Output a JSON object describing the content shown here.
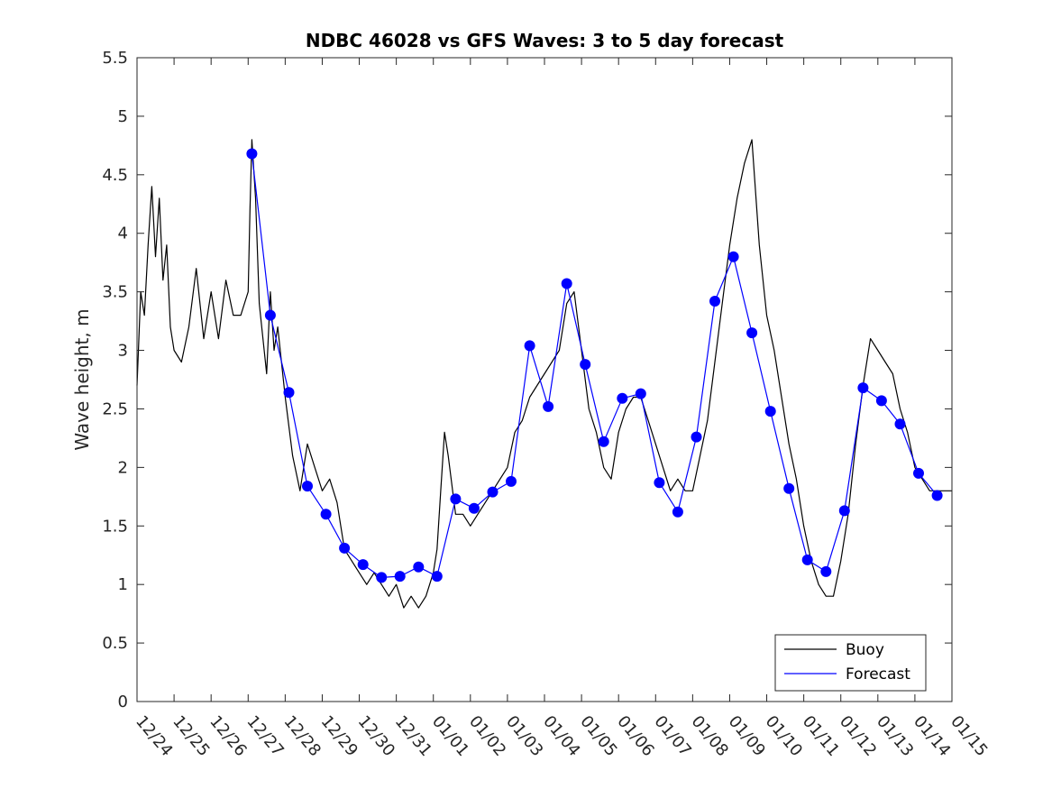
{
  "chart_data": {
    "type": "line",
    "title": "NDBC 46028 vs GFS Waves: 3 to 5 day forecast",
    "xlabel": "",
    "ylabel": "Wave height, m",
    "ylim": [
      0,
      5.5
    ],
    "xlim": [
      0,
      22
    ],
    "x_unit": "days since 12/24",
    "yticks": [
      0,
      0.5,
      1,
      1.5,
      2,
      2.5,
      3,
      3.5,
      4,
      4.5,
      5,
      5.5
    ],
    "ytick_labels": [
      "0",
      "0.5",
      "1",
      "1.5",
      "2",
      "2.5",
      "3",
      "3.5",
      "4",
      "4.5",
      "5",
      "5.5"
    ],
    "xtick_labels": [
      "12/24",
      "12/25",
      "12/26",
      "12/27",
      "12/28",
      "12/29",
      "12/30",
      "12/31",
      "01/01",
      "01/02",
      "01/03",
      "01/04",
      "01/05",
      "01/06",
      "01/07",
      "01/08",
      "01/09",
      "01/10",
      "01/11",
      "01/12",
      "01/13",
      "01/14",
      "01/15"
    ],
    "grid": false,
    "legend": {
      "position": "bottom-right",
      "entries": [
        {
          "label": "Buoy",
          "color": "#000000"
        },
        {
          "label": "Forecast",
          "color": "#0000ff"
        }
      ]
    },
    "series": [
      {
        "name": "Buoy",
        "color": "#000000",
        "x": [
          0.0,
          0.1,
          0.2,
          0.3,
          0.4,
          0.5,
          0.6,
          0.7,
          0.8,
          0.9,
          1.0,
          1.2,
          1.4,
          1.6,
          1.8,
          2.0,
          2.2,
          2.4,
          2.6,
          2.8,
          3.0,
          3.05,
          3.1,
          3.2,
          3.3,
          3.4,
          3.5,
          3.6,
          3.7,
          3.8,
          4.0,
          4.2,
          4.4,
          4.6,
          4.8,
          5.0,
          5.2,
          5.4,
          5.6,
          5.8,
          6.0,
          6.2,
          6.4,
          6.6,
          6.8,
          7.0,
          7.2,
          7.4,
          7.6,
          7.8,
          8.0,
          8.1,
          8.2,
          8.3,
          8.4,
          8.6,
          8.8,
          9.0,
          9.2,
          9.4,
          9.6,
          9.8,
          10.0,
          10.2,
          10.4,
          10.6,
          10.8,
          11.0,
          11.2,
          11.4,
          11.6,
          11.8,
          12.0,
          12.2,
          12.4,
          12.6,
          12.8,
          13.0,
          13.2,
          13.4,
          13.6,
          13.8,
          14.0,
          14.2,
          14.4,
          14.6,
          14.8,
          15.0,
          15.2,
          15.4,
          15.6,
          15.8,
          16.0,
          16.2,
          16.4,
          16.6,
          16.8,
          17.0,
          17.2,
          17.4,
          17.6,
          17.8,
          18.0,
          18.2,
          18.4,
          18.6,
          18.8,
          19.0,
          19.2,
          19.4,
          19.6,
          19.8,
          20.0,
          20.2,
          20.4,
          20.6,
          20.8,
          21.0,
          21.2,
          21.4,
          21.6,
          21.8,
          22.0
        ],
        "values": [
          2.7,
          3.5,
          3.3,
          3.9,
          4.4,
          3.8,
          4.3,
          3.6,
          3.9,
          3.2,
          3.0,
          2.9,
          3.2,
          3.7,
          3.1,
          3.5,
          3.1,
          3.6,
          3.3,
          3.3,
          3.5,
          4.2,
          4.8,
          4.3,
          3.4,
          3.1,
          2.8,
          3.5,
          3.0,
          3.2,
          2.6,
          2.1,
          1.8,
          2.2,
          2.0,
          1.8,
          1.9,
          1.7,
          1.3,
          1.2,
          1.1,
          1.0,
          1.1,
          1.0,
          0.9,
          1.0,
          0.8,
          0.9,
          0.8,
          0.9,
          1.1,
          1.3,
          1.8,
          2.3,
          2.1,
          1.6,
          1.6,
          1.5,
          1.6,
          1.7,
          1.8,
          1.9,
          2.0,
          2.3,
          2.4,
          2.6,
          2.7,
          2.8,
          2.9,
          3.0,
          3.4,
          3.5,
          3.0,
          2.5,
          2.3,
          2.0,
          1.9,
          2.3,
          2.5,
          2.6,
          2.6,
          2.4,
          2.2,
          2.0,
          1.8,
          1.9,
          1.8,
          1.8,
          2.1,
          2.4,
          2.9,
          3.4,
          3.9,
          4.3,
          4.6,
          4.8,
          3.9,
          3.3,
          3.0,
          2.6,
          2.2,
          1.9,
          1.5,
          1.2,
          1.0,
          0.9,
          0.9,
          1.2,
          1.6,
          2.2,
          2.7,
          3.1,
          3.0,
          2.9,
          2.8,
          2.5,
          2.3,
          2.0,
          1.9,
          1.8,
          1.8,
          1.8,
          1.8
        ]
      },
      {
        "name": "Forecast",
        "color": "#0000ff",
        "x": [
          3.1,
          3.6,
          4.1,
          4.6,
          5.1,
          5.6,
          6.1,
          6.6,
          7.1,
          7.6,
          8.1,
          8.6,
          9.1,
          9.6,
          10.1,
          10.6,
          11.1,
          11.6,
          12.1,
          12.6,
          13.1,
          13.6,
          14.1,
          14.6,
          15.1,
          15.6,
          16.1,
          16.6,
          17.1,
          17.6,
          18.1,
          18.6,
          19.1,
          19.6,
          20.1,
          20.6,
          21.1,
          21.6
        ],
        "values": [
          4.68,
          3.3,
          2.64,
          1.84,
          1.6,
          1.31,
          1.17,
          1.06,
          1.07,
          1.15,
          1.07,
          1.73,
          1.65,
          1.79,
          1.88,
          3.04,
          2.52,
          3.57,
          2.88,
          2.22,
          2.59,
          2.63,
          1.87,
          1.62,
          2.26,
          3.42,
          3.8,
          3.15,
          2.48,
          1.82,
          1.21,
          1.11,
          1.63,
          2.68,
          2.57,
          2.37,
          1.95,
          1.76
        ]
      }
    ]
  }
}
